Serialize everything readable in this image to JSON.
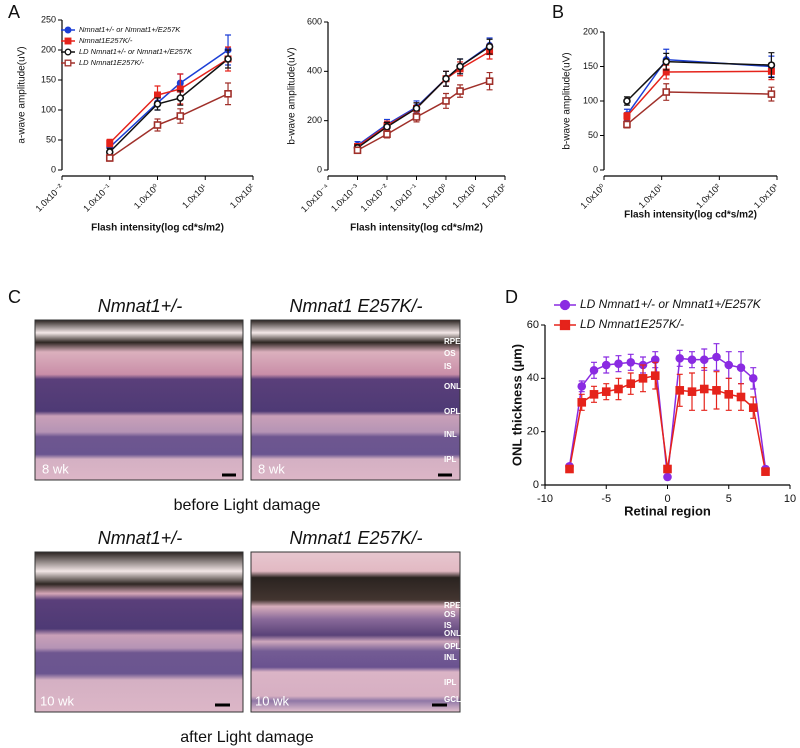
{
  "panels": {
    "a": "A",
    "b": "B",
    "c": "C",
    "d": "D"
  },
  "chart_data": [
    {
      "type": "line",
      "log_x": true,
      "legend": "upper left",
      "x_label": "Flash intensity(log cd*s/m2)",
      "y_label": "a-wave amplitude(uV)",
      "xlim": [
        0.01,
        100
      ],
      "xticks": [
        {
          "value": 0.01,
          "label": "1.0x10⁻²"
        },
        {
          "value": 0.1,
          "label": "1.0x10⁻¹"
        },
        {
          "value": 1,
          "label": "1.0x10⁰"
        },
        {
          "value": 10,
          "label": "1.0x10¹"
        },
        {
          "value": 100,
          "label": "1.0x10²"
        }
      ],
      "ylim": [
        0,
        250
      ],
      "yticks": [
        0,
        50,
        100,
        150,
        200,
        250
      ],
      "x": [
        0.1,
        1,
        3,
        30
      ],
      "series": [
        {
          "name": "Nmnat1+/- or Nmnat1+/E257K",
          "color": "#1c3fd6",
          "marker": "circle",
          "filled": true,
          "values": [
            38,
            112,
            145,
            200
          ],
          "errors": [
            8,
            12,
            15,
            25
          ]
        },
        {
          "name": "Nmnat1E257K/-",
          "color": "#e5231b",
          "marker": "square",
          "filled": true,
          "values": [
            45,
            125,
            135,
            185
          ],
          "errors": [
            6,
            15,
            25,
            20
          ]
        },
        {
          "name": "LD Nmnat1+/- or Nmnat1+/E257K",
          "color": "#111111",
          "marker": "circle",
          "filled": false,
          "values": [
            30,
            110,
            120,
            185
          ],
          "errors": [
            6,
            10,
            12,
            15
          ]
        },
        {
          "name": "LD Nmnat1E257K/-",
          "color": "#a0302a",
          "marker": "square",
          "filled": false,
          "values": [
            20,
            75,
            90,
            127
          ],
          "errors": [
            5,
            10,
            12,
            18
          ]
        }
      ]
    },
    {
      "type": "line",
      "log_x": true,
      "x_label": "Flash intensity(log cd*s/m2)",
      "y_label": "b-wave amplitude(uV)",
      "xlim": [
        0.0001,
        100
      ],
      "xticks": [
        {
          "value": 0.0001,
          "label": "1.0x10⁻⁴"
        },
        {
          "value": 0.001,
          "label": "1.0x10⁻³"
        },
        {
          "value": 0.01,
          "label": "1.0x10⁻²"
        },
        {
          "value": 0.1,
          "label": "1.0x10⁻¹"
        },
        {
          "value": 1,
          "label": "1.0x10⁰"
        },
        {
          "value": 10,
          "label": "1.0x10¹"
        },
        {
          "value": 100,
          "label": "1.0x10²"
        }
      ],
      "ylim": [
        0,
        600
      ],
      "yticks": [
        0,
        200,
        400,
        600
      ],
      "x": [
        0.001,
        0.01,
        0.1,
        1,
        3,
        30
      ],
      "series": [
        {
          "color": "#1c3fd6",
          "marker": "circle",
          "filled": true,
          "values": [
            100,
            185,
            255,
            370,
            420,
            505
          ],
          "errors": [
            15,
            20,
            25,
            30,
            30,
            30
          ]
        },
        {
          "color": "#e5231b",
          "marker": "square",
          "filled": true,
          "values": [
            95,
            180,
            250,
            370,
            410,
            480
          ],
          "errors": [
            12,
            18,
            22,
            30,
            28,
            30
          ]
        },
        {
          "color": "#111111",
          "marker": "circle",
          "filled": false,
          "values": [
            90,
            175,
            250,
            370,
            420,
            500
          ],
          "errors": [
            12,
            18,
            22,
            30,
            30,
            30
          ]
        },
        {
          "color": "#a0302a",
          "marker": "square",
          "filled": false,
          "values": [
            80,
            145,
            215,
            280,
            320,
            360
          ],
          "errors": [
            10,
            15,
            20,
            30,
            25,
            35
          ]
        }
      ]
    },
    {
      "type": "line",
      "log_x": true,
      "x_label": "Flash intensity(log cd*s/m2)",
      "y_label": "b-wave amplitude(uV)",
      "xlim": [
        1,
        1000
      ],
      "xticks": [
        {
          "value": 1,
          "label": "1.0x10⁰"
        },
        {
          "value": 10,
          "label": "1.0x10¹"
        },
        {
          "value": 100,
          "label": "1.0x10²"
        },
        {
          "value": 1000,
          "label": "1.0x10³"
        }
      ],
      "ylim": [
        0,
        200
      ],
      "yticks": [
        0,
        50,
        100,
        150,
        200
      ],
      "x": [
        2.5,
        12,
        800
      ],
      "series": [
        {
          "color": "#1c3fd6",
          "marker": "circle",
          "filled": true,
          "values": [
            80,
            160,
            150
          ],
          "errors": [
            8,
            15,
            15
          ]
        },
        {
          "color": "#e5231b",
          "marker": "square",
          "filled": true,
          "values": [
            78,
            142,
            143
          ],
          "errors": [
            5,
            10,
            12
          ]
        },
        {
          "color": "#111111",
          "marker": "circle",
          "filled": false,
          "values": [
            100,
            157,
            152
          ],
          "errors": [
            6,
            12,
            18
          ]
        },
        {
          "color": "#a0302a",
          "marker": "square",
          "filled": false,
          "values": [
            66,
            113,
            110
          ],
          "errors": [
            5,
            12,
            10
          ]
        }
      ]
    },
    {
      "type": "line",
      "log_x": false,
      "legend": "top",
      "x_label": "Retinal region",
      "y_label": "ONL thickness (µm)",
      "xlim": [
        -10,
        10
      ],
      "xticks": [
        -10,
        -5,
        0,
        5,
        10
      ],
      "ylim": [
        0,
        60
      ],
      "yticks": [
        0,
        20,
        40,
        60
      ],
      "x": [
        -8,
        -7,
        -6,
        -5,
        -4,
        -3,
        -2,
        -1,
        0,
        1,
        2,
        3,
        4,
        5,
        6,
        7,
        8
      ],
      "series": [
        {
          "name": "LD Nmnat1+/- or Nmnat1+/E257K",
          "color": "#8a2be2",
          "marker": "circle",
          "filled": true,
          "values": [
            7,
            37,
            43,
            45,
            45.5,
            46,
            45,
            47,
            3,
            47.5,
            47,
            47,
            48,
            45,
            44,
            40,
            6
          ],
          "errors": [
            1,
            2,
            3,
            3,
            3,
            3,
            3,
            3,
            1,
            3,
            3,
            4,
            5,
            5,
            6,
            4,
            1
          ]
        },
        {
          "name": "LD Nmnat1E257K/-",
          "color": "#e5231b",
          "marker": "square",
          "filled": true,
          "values": [
            6,
            31,
            34,
            35,
            36,
            38,
            40,
            41,
            6,
            35.5,
            35,
            36,
            35.5,
            34,
            33,
            29,
            5
          ],
          "errors": [
            1,
            3,
            3,
            3,
            4,
            4,
            5,
            5,
            1,
            6,
            7,
            8,
            7,
            6,
            5,
            4,
            1
          ]
        }
      ]
    }
  ],
  "histology": {
    "top_titles": [
      "Nmnat1+/-",
      "Nmnat1 E257K/-"
    ],
    "bottom_titles": [
      "Nmnat1+/-",
      "Nmnat1 E257K/-"
    ],
    "top_layers": [
      "RPE",
      "OS",
      "IS",
      "ONL",
      "OPL",
      "INL",
      "IPL"
    ],
    "bottom_layers": [
      "RPE",
      "OS",
      "IS",
      "ONL",
      "OPL",
      "INL",
      "IPL",
      "GCL"
    ],
    "top_age": "8 wk",
    "bottom_age": "10 wk",
    "top_caption": "before  Light damage",
    "bottom_caption": "after Light damage"
  }
}
